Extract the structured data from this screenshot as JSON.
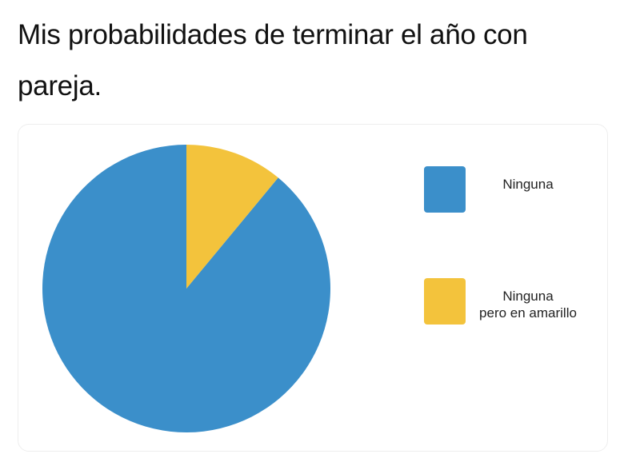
{
  "post": {
    "text": "Mis probabilidades de terminar el año con pareja."
  },
  "chart_data": {
    "type": "pie",
    "categories": [
      "Ninguna",
      "Ninguna\npero en amarillo"
    ],
    "values": [
      89,
      11
    ],
    "colors": [
      "#3b8fca",
      "#f3c33c"
    ],
    "legend": "right"
  }
}
